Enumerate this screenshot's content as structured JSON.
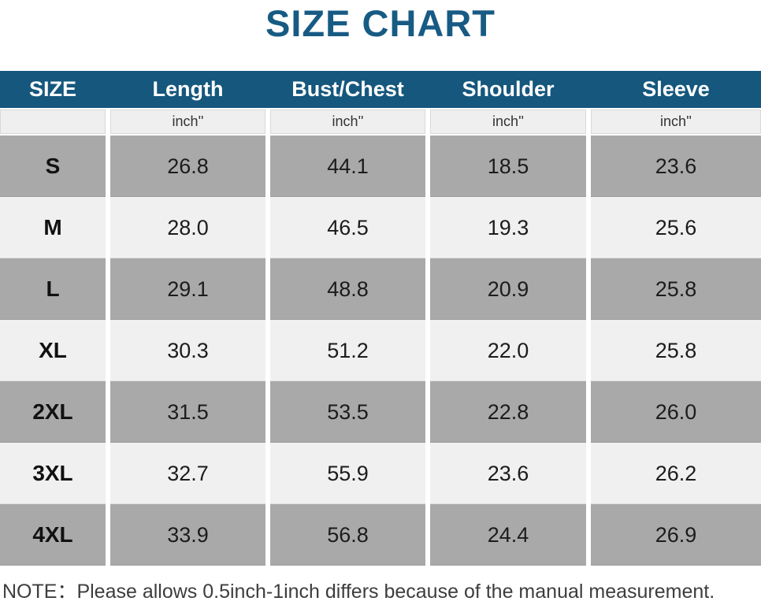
{
  "title": "SIZE CHART",
  "table": {
    "columns": [
      "SIZE",
      "Length",
      "Bust/Chest",
      "Shoulder",
      "Sleeve"
    ],
    "unit_row": [
      "",
      "inch''",
      "inch''",
      "inch''",
      "inch''"
    ],
    "rows": [
      {
        "size": "S",
        "values": [
          "26.8",
          "44.1",
          "18.5",
          "23.6"
        ]
      },
      {
        "size": "M",
        "values": [
          "28.0",
          "46.5",
          "19.3",
          "25.6"
        ]
      },
      {
        "size": "L",
        "values": [
          "29.1",
          "48.8",
          "20.9",
          "25.8"
        ]
      },
      {
        "size": "XL",
        "values": [
          "30.3",
          "51.2",
          "22.0",
          "25.8"
        ]
      },
      {
        "size": "2XL",
        "values": [
          "31.5",
          "53.5",
          "22.8",
          "26.0"
        ]
      },
      {
        "size": "3XL",
        "values": [
          "32.7",
          "55.9",
          "23.6",
          "26.2"
        ]
      },
      {
        "size": "4XL",
        "values": [
          "33.9",
          "56.8",
          "24.4",
          "26.9"
        ]
      }
    ]
  },
  "note": "NOTE：Please allows 0.5inch-1inch differs because of the manual measurement.",
  "colors": {
    "title": "#175b84",
    "header_bg": "#15577d",
    "header_text": "#ffffff",
    "row_gray": "#a9a9a9",
    "row_light": "#f0f0f0",
    "unit_bg": "#efefef",
    "note_text": "#3d3d3d"
  },
  "chart_data": {
    "type": "table",
    "title": "SIZE CHART",
    "columns": [
      "SIZE",
      "Length (inch'')",
      "Bust/Chest (inch'')",
      "Shoulder (inch'')",
      "Sleeve (inch'')"
    ],
    "rows": [
      [
        "S",
        26.8,
        44.1,
        18.5,
        23.6
      ],
      [
        "M",
        28.0,
        46.5,
        19.3,
        25.6
      ],
      [
        "L",
        29.1,
        48.8,
        20.9,
        25.8
      ],
      [
        "XL",
        30.3,
        51.2,
        22.0,
        25.8
      ],
      [
        "2XL",
        31.5,
        53.5,
        22.8,
        26.0
      ],
      [
        "3XL",
        32.7,
        55.9,
        23.6,
        26.2
      ],
      [
        "4XL",
        33.9,
        56.8,
        24.4,
        26.9
      ]
    ],
    "annotations": [
      "NOTE：Please allows 0.5inch-1inch differs because of the manual measurement."
    ]
  }
}
